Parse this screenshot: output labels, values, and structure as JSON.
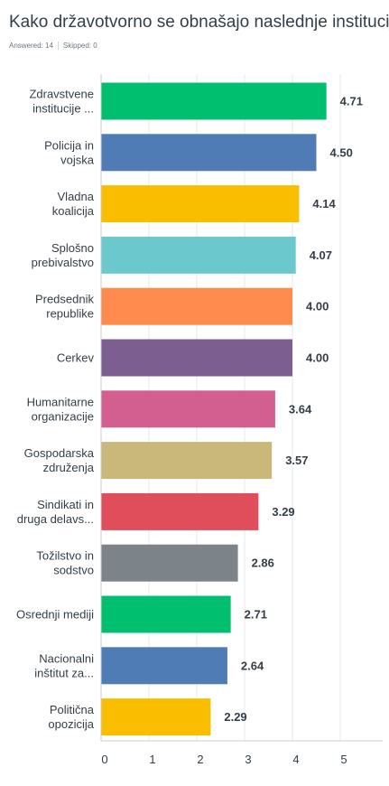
{
  "header": {
    "title": "Kako državotvorno se obnašajo naslednje institucije:",
    "answered": "Answered: 14",
    "skipped": "Skipped: 0"
  },
  "chart_data": {
    "type": "bar",
    "orientation": "horizontal",
    "categories": [
      [
        "Zdravstvene",
        "institucije ..."
      ],
      [
        "Policija in",
        "vojska"
      ],
      [
        "Vladna",
        "koalicija"
      ],
      [
        "Splošno",
        "prebivalstvo"
      ],
      [
        "Predsednik",
        "republike"
      ],
      [
        "Cerkev"
      ],
      [
        "Humanitarne",
        "organizacije"
      ],
      [
        "Gospodarska",
        "združenja"
      ],
      [
        "Sindikati in",
        "druga delavs..."
      ],
      [
        "Tožilstvo in",
        "sodstvo"
      ],
      [
        "Osrednji mediji"
      ],
      [
        "Nacionalni",
        "inštitut za..."
      ],
      [
        "Politična",
        "opozicija"
      ]
    ],
    "values": [
      4.71,
      4.5,
      4.14,
      4.07,
      4.0,
      4.0,
      3.64,
      3.57,
      3.29,
      2.86,
      2.71,
      2.64,
      2.29
    ],
    "value_labels": [
      "4.71",
      "4.50",
      "4.14",
      "4.07",
      "4.00",
      "4.00",
      "3.64",
      "3.57",
      "3.29",
      "2.86",
      "2.71",
      "2.64",
      "2.29"
    ],
    "colors": [
      "#00bf6f",
      "#507cb6",
      "#f9be00",
      "#6bc8cd",
      "#ff8b4f",
      "#7d5e90",
      "#d25f90",
      "#c9b87a",
      "#e04e5c",
      "#7c848a",
      "#00bf6f",
      "#507cb6",
      "#f9be00"
    ],
    "xlim": [
      0,
      5.5
    ],
    "xticks": [
      "0",
      "1",
      "2",
      "3",
      "4",
      "5"
    ],
    "grid": true
  }
}
